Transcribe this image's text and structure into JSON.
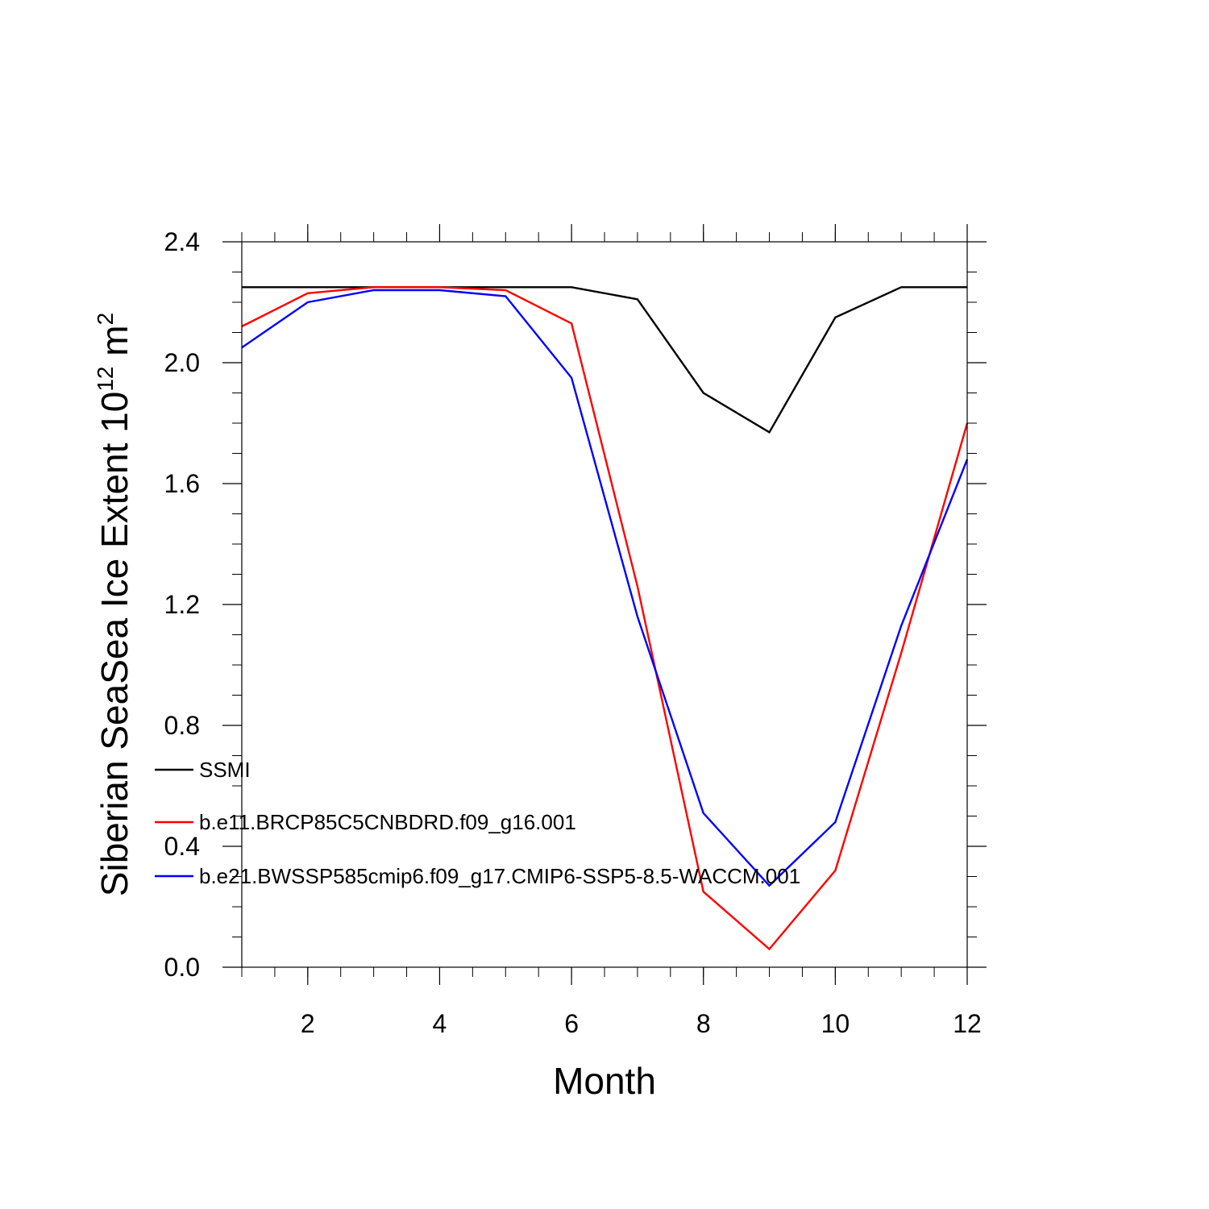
{
  "chart_data": {
    "type": "line",
    "xlabel": "Month",
    "ylabel": {
      "main": "Siberian SeaSea Ice Extent 10",
      "exponent": "12",
      "unit": " m",
      "unit_exponent": "2"
    },
    "xlim": [
      1,
      12
    ],
    "ylim": [
      0.0,
      2.4
    ],
    "x_ticks": [
      2,
      4,
      6,
      8,
      10,
      12
    ],
    "y_ticks": [
      "0.0",
      "0.4",
      "0.8",
      "1.2",
      "1.6",
      "2.0",
      "2.4"
    ],
    "grid": false,
    "legend_position": "bottom-left",
    "x": [
      1,
      2,
      3,
      4,
      5,
      6,
      7,
      8,
      9,
      10,
      11,
      12
    ],
    "series": [
      {
        "name": "SSMI",
        "color": "#000000",
        "values": [
          2.25,
          2.25,
          2.25,
          2.25,
          2.25,
          2.25,
          2.21,
          1.9,
          1.77,
          2.15,
          2.25,
          2.25
        ]
      },
      {
        "name": "b.e11.BRCP85C5CNBDRD.f09_g16.001",
        "color": "#ff0000",
        "values": [
          2.12,
          2.23,
          2.25,
          2.25,
          2.24,
          2.13,
          1.26,
          0.25,
          0.06,
          0.32,
          1.04,
          1.8
        ]
      },
      {
        "name": "b.e21.BWSSP585cmip6.f09_g17.CMIP6-SSP5-8.5-WACCM.001",
        "color": "#0000ff",
        "values": [
          2.05,
          2.2,
          2.24,
          2.24,
          2.22,
          1.95,
          1.16,
          0.51,
          0.27,
          0.48,
          1.13,
          1.68
        ]
      }
    ]
  }
}
